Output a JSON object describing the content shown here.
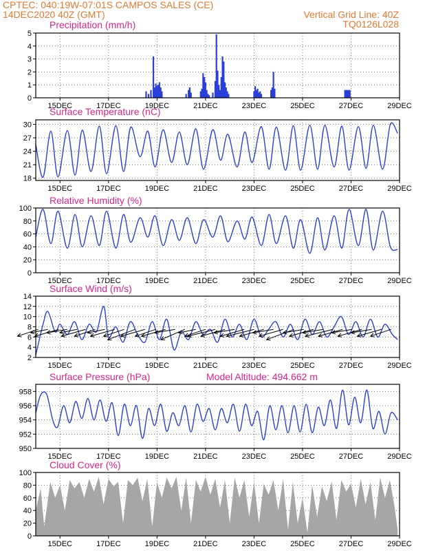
{
  "header": {
    "line1": "CPTEC:  040:19W-07:01S  CAMPOS SALES (CE)",
    "date": "14DEC2020 40Z (GMT)",
    "grid_note": "Vertical Grid Line: 40Z",
    "code": "TQ0126L028"
  },
  "colors": {
    "header": "#e8792a",
    "panel_title": "#e0208a",
    "line": "#2a3fd8",
    "bar": "#2a3fd8",
    "cloud": "#a6a6a6",
    "arrow": "#000000"
  },
  "chart_data": [
    {
      "type": "bar",
      "title": "Precipitation (mm/h)",
      "x_tick_labels": [
        "15DEC",
        "17DEC",
        "19DEC",
        "21DEC",
        "23DEC",
        "25DEC",
        "27DEC",
        "29DEC"
      ],
      "ylim": [
        0,
        5
      ],
      "y_ticks": [
        0,
        1,
        2,
        3,
        4,
        5
      ],
      "grid": true,
      "x_days": [
        4.55,
        4.65,
        4.75,
        4.85,
        4.9,
        4.95,
        5.0,
        5.05,
        5.1,
        5.15,
        5.2,
        6.2,
        6.3,
        6.35,
        6.4,
        6.8,
        6.85,
        6.9,
        6.95,
        7.0,
        7.05,
        7.1,
        7.15,
        7.3,
        7.4,
        7.45,
        7.5,
        7.55,
        7.6,
        7.65,
        7.7,
        7.75,
        7.8,
        7.85,
        7.9,
        7.95,
        9.0,
        9.05,
        9.1,
        9.15,
        9.2,
        9.25,
        9.3,
        9.7,
        9.75,
        9.8,
        9.85,
        12.75,
        12.8,
        12.85,
        12.9,
        12.95
      ],
      "values": [
        0.5,
        0.3,
        0.6,
        3.2,
        0.8,
        1.1,
        0.9,
        1.0,
        1.2,
        0.8,
        0.5,
        0.3,
        0.6,
        0.8,
        0.4,
        0.5,
        0.7,
        1.9,
        1.6,
        1.2,
        0.6,
        0.3,
        0.2,
        0.4,
        1.3,
        4.9,
        2.1,
        1.0,
        0.6,
        1.6,
        3.2,
        2.8,
        1.2,
        0.8,
        0.5,
        0.3,
        0.5,
        0.9,
        0.6,
        0.7,
        0.4,
        0.5,
        0.3,
        0.6,
        0.8,
        2.0,
        0.7,
        0.6,
        0.6,
        0.6,
        0.6,
        0.6
      ]
    },
    {
      "type": "line",
      "title": "Surface Temperature (nC)",
      "x_tick_labels": [
        "15DEC",
        "17DEC",
        "19DEC",
        "21DEC",
        "23DEC",
        "25DEC",
        "27DEC",
        "29DEC"
      ],
      "ylim": [
        17.5,
        31
      ],
      "y_ticks": [
        18,
        21,
        24,
        27,
        30
      ],
      "grid": true,
      "x_days": [
        0,
        0.3,
        0.62,
        0.92,
        1.3,
        1.62,
        1.92,
        2.28,
        2.62,
        2.92,
        3.3,
        3.62,
        3.92,
        4.3,
        4.62,
        4.92,
        5.25,
        5.6,
        5.92,
        6.25,
        6.6,
        6.92,
        7.3,
        7.62,
        7.92,
        8.3,
        8.62,
        8.92,
        9.3,
        9.62,
        9.92,
        10.3,
        10.62,
        10.92,
        11.3,
        11.62,
        11.92,
        12.3,
        12.62,
        12.92,
        13.3,
        13.62,
        13.92,
        14.3,
        14.62,
        14.92
      ],
      "values": [
        25.5,
        18.2,
        28.5,
        18.3,
        28.6,
        18.7,
        28.7,
        19.5,
        29.6,
        19.0,
        29.7,
        19.5,
        29.4,
        22.8,
        28.5,
        20.5,
        28.8,
        21.5,
        28.3,
        21.0,
        29.0,
        20.0,
        28.8,
        22.0,
        27.8,
        20.5,
        28.3,
        21.5,
        29.5,
        20.0,
        29.4,
        19.8,
        29.7,
        19.8,
        29.8,
        20.0,
        29.8,
        20.5,
        29.6,
        19.8,
        29.5,
        20.2,
        29.8,
        20.0,
        30.0,
        28.0
      ]
    },
    {
      "type": "line",
      "title": "Relative Humidity (%)",
      "x_tick_labels": [
        "15DEC",
        "17DEC",
        "19DEC",
        "21DEC",
        "23DEC",
        "25DEC",
        "27DEC",
        "29DEC"
      ],
      "ylim": [
        0,
        100
      ],
      "y_ticks": [
        0,
        20,
        40,
        60,
        80,
        100
      ],
      "grid": true,
      "x_days": [
        0,
        0.3,
        0.62,
        0.92,
        1.3,
        1.62,
        1.92,
        2.28,
        2.62,
        2.92,
        3.3,
        3.62,
        3.92,
        4.3,
        4.62,
        4.92,
        5.25,
        5.6,
        5.92,
        6.25,
        6.6,
        6.92,
        7.3,
        7.62,
        7.92,
        8.3,
        8.62,
        8.92,
        9.3,
        9.62,
        9.92,
        10.3,
        10.62,
        10.92,
        11.3,
        11.62,
        11.92,
        12.3,
        12.62,
        12.92,
        13.3,
        13.62,
        13.92,
        14.3,
        14.62,
        14.92
      ],
      "values": [
        55,
        98,
        45,
        95,
        38,
        90,
        40,
        88,
        42,
        95,
        38,
        90,
        47,
        85,
        55,
        88,
        42,
        82,
        50,
        85,
        45,
        82,
        55,
        88,
        48,
        80,
        52,
        86,
        42,
        90,
        45,
        88,
        38,
        82,
        30,
        85,
        35,
        88,
        38,
        98,
        42,
        98,
        35,
        95,
        40,
        36
      ]
    },
    {
      "type": "line",
      "title": "Surface Wind (m/s)",
      "x_tick_labels": [
        "15DEC",
        "17DEC",
        "19DEC",
        "21DEC",
        "23DEC",
        "25DEC",
        "27DEC",
        "29DEC"
      ],
      "ylim": [
        2,
        14
      ],
      "y_ticks": [
        2,
        4,
        6,
        8,
        10,
        12,
        14
      ],
      "grid": true,
      "x_days": [
        0,
        0.3,
        0.5,
        0.8,
        1.0,
        1.3,
        1.6,
        1.9,
        2.2,
        2.5,
        2.8,
        3.0,
        3.3,
        3.6,
        3.9,
        4.2,
        4.5,
        4.8,
        5.1,
        5.4,
        5.7,
        6.0,
        6.3,
        6.6,
        6.9,
        7.2,
        7.5,
        7.8,
        8.1,
        8.4,
        8.7,
        9.0,
        9.3,
        9.6,
        9.9,
        10.2,
        10.5,
        10.8,
        11.1,
        11.4,
        11.7,
        12.0,
        12.3,
        12.6,
        12.9,
        13.2,
        13.5,
        13.8,
        14.1,
        14.4,
        14.7,
        14.92
      ],
      "values": [
        2.5,
        8.5,
        11.0,
        7.0,
        8.5,
        6.5,
        9.0,
        5.5,
        8.5,
        7.0,
        12.0,
        6.0,
        8.0,
        5.0,
        9.0,
        6.5,
        5.0,
        9.0,
        5.5,
        9.5,
        3.5,
        7.0,
        5.5,
        9.0,
        6.5,
        7.5,
        5.0,
        9.5,
        6.0,
        8.5,
        5.5,
        9.5,
        6.0,
        7.5,
        9.0,
        6.0,
        8.5,
        5.5,
        9.5,
        6.5,
        9.0,
        6.0,
        8.0,
        10.0,
        6.5,
        9.0,
        6.0,
        9.5,
        6.0,
        8.5,
        6.5,
        5.5
      ],
      "vector_x_days": [
        0.1,
        0.5,
        0.95,
        1.3,
        1.7,
        2.05,
        2.45,
        2.85,
        3.25,
        3.65,
        4.1,
        4.5,
        4.95,
        5.35,
        5.75,
        6.15,
        6.6,
        7.0,
        7.4,
        7.8,
        8.2,
        8.6,
        9.0,
        9.4,
        9.8,
        10.2,
        10.65,
        11.05,
        11.45,
        11.85,
        12.25,
        12.65,
        13.05,
        13.45,
        13.85,
        14.25,
        14.65
      ],
      "vector_u": [
        -6,
        -5,
        -7,
        -6,
        -5,
        -7,
        -6,
        -5,
        -7,
        -6,
        -8,
        -7,
        -6,
        -7,
        -6,
        -7,
        -5,
        -6,
        -8,
        -7,
        -6,
        -7,
        -8,
        -7,
        -6,
        -7,
        -8,
        -6,
        -7,
        -6,
        -8,
        -7,
        -6,
        -7,
        -6,
        -7,
        -6
      ],
      "vector_v": [
        -2,
        -1,
        -2,
        -1,
        -1,
        -2,
        -2,
        -1,
        -2,
        -2,
        -3,
        -2,
        -2,
        -2,
        -1,
        -3,
        -1,
        -2,
        -2,
        -2,
        -1,
        -2,
        -2,
        -2,
        -1,
        -2,
        -3,
        -1,
        -2,
        -1,
        -2,
        -2,
        -1,
        -2,
        -1,
        -2,
        -2
      ]
    },
    {
      "type": "line",
      "title": "Surface Pressure (hPa)",
      "annotation": "Model Altitude: 494.662 m",
      "x_tick_labels": [
        "15DEC",
        "17DEC",
        "19DEC",
        "21DEC",
        "23DEC",
        "25DEC",
        "27DEC",
        "29DEC"
      ],
      "ylim": [
        950,
        959
      ],
      "y_ticks": [
        950,
        952,
        954,
        956,
        958
      ],
      "grid": true,
      "x_days": [
        0,
        0.2,
        0.45,
        0.7,
        0.9,
        1.15,
        1.4,
        1.65,
        1.9,
        2.15,
        2.4,
        2.65,
        2.9,
        3.15,
        3.4,
        3.65,
        3.9,
        4.15,
        4.4,
        4.65,
        4.9,
        5.15,
        5.4,
        5.65,
        5.9,
        6.15,
        6.4,
        6.65,
        6.9,
        7.15,
        7.4,
        7.65,
        7.9,
        8.15,
        8.4,
        8.65,
        8.9,
        9.15,
        9.4,
        9.65,
        9.9,
        10.15,
        10.4,
        10.65,
        10.9,
        11.15,
        11.4,
        11.65,
        11.9,
        12.15,
        12.4,
        12.65,
        12.9,
        13.15,
        13.4,
        13.65,
        13.9,
        14.15,
        14.4,
        14.65,
        14.92
      ],
      "values": [
        955.0,
        957.5,
        957.6,
        954.0,
        953.0,
        956.0,
        953.6,
        956.6,
        954.2,
        957.0,
        954.0,
        956.8,
        953.8,
        956.4,
        951.8,
        956.2,
        953.2,
        956.0,
        951.4,
        955.6,
        953.2,
        956.2,
        952.4,
        955.0,
        953.2,
        956.0,
        952.3,
        956.2,
        953.8,
        955.6,
        952.6,
        955.6,
        953.6,
        956.2,
        952.4,
        956.2,
        953.2,
        955.2,
        951.2,
        956.0,
        952.6,
        956.0,
        952.2,
        956.0,
        952.3,
        956.2,
        952.2,
        955.8,
        953.2,
        956.8,
        952.8,
        958.2,
        953.3,
        957.2,
        953.6,
        958.2,
        952.8,
        955.2,
        952.0,
        955.0,
        954.0
      ]
    },
    {
      "type": "area",
      "title": "Cloud Cover (%)",
      "x_tick_labels": [
        "15DEC",
        "17DEC",
        "19DEC",
        "21DEC",
        "23DEC",
        "25DEC",
        "27DEC",
        "29DEC"
      ],
      "ylim": [
        0,
        100
      ],
      "y_ticks": [
        0,
        20,
        40,
        60,
        80,
        100
      ],
      "grid": true,
      "x_days": [
        0,
        0.2,
        0.35,
        0.6,
        0.8,
        1.0,
        1.2,
        1.4,
        1.6,
        1.8,
        2.0,
        2.2,
        2.4,
        2.6,
        2.8,
        3.0,
        3.2,
        3.4,
        3.6,
        3.8,
        4.0,
        4.2,
        4.4,
        4.6,
        4.8,
        5.0,
        5.2,
        5.4,
        5.6,
        5.8,
        6.0,
        6.2,
        6.4,
        6.6,
        6.8,
        7.0,
        7.2,
        7.4,
        7.6,
        7.8,
        8.0,
        8.2,
        8.4,
        8.6,
        8.8,
        9.0,
        9.2,
        9.4,
        9.6,
        9.8,
        10.0,
        10.2,
        10.4,
        10.6,
        10.8,
        11.0,
        11.2,
        11.4,
        11.6,
        11.8,
        12.0,
        12.2,
        12.4,
        12.6,
        12.8,
        13.0,
        13.2,
        13.4,
        13.6,
        13.8,
        14.0,
        14.2,
        14.4,
        14.6,
        14.8,
        14.92
      ],
      "values": [
        40,
        75,
        15,
        85,
        60,
        80,
        40,
        88,
        75,
        85,
        60,
        90,
        70,
        93,
        50,
        90,
        78,
        85,
        20,
        88,
        80,
        92,
        55,
        90,
        15,
        85,
        60,
        92,
        75,
        93,
        40,
        92,
        20,
        88,
        70,
        93,
        65,
        90,
        45,
        88,
        20,
        92,
        60,
        88,
        30,
        85,
        20,
        82,
        65,
        88,
        40,
        90,
        10,
        85,
        20,
        60,
        5,
        80,
        30,
        78,
        55,
        86,
        25,
        88,
        70,
        82,
        45,
        90,
        50,
        85,
        25,
        92,
        60,
        88,
        45,
        10
      ]
    }
  ]
}
